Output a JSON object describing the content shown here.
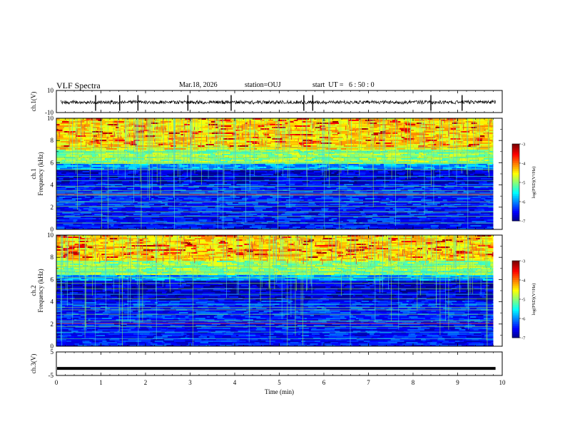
{
  "header": {
    "title": "VLF Spectra",
    "date": "Mar.18, 2026",
    "station": "station=OUJ",
    "start": "start  UT =   6 : 50 : 0"
  },
  "chart_data": [
    {
      "type": "line",
      "panel": "ch1",
      "ylabel": "ch.1(V)",
      "ylim": [
        -10,
        10
      ],
      "yticks": [
        "10",
        "-10"
      ],
      "xlim": [
        0,
        10
      ],
      "trace": "noisy waveform centred near 0 V with spikes",
      "spikes_min": [
        0.88,
        1.42,
        1.83,
        2.95,
        3.92,
        5.55,
        5.75,
        8.4,
        9.1
      ]
    },
    {
      "type": "heatmap",
      "panel": "ch1",
      "ylabel_line1": "ch.1",
      "ylabel_line2": "Frequency  (kHz)",
      "ylim": [
        0,
        10
      ],
      "yticks": [
        "0",
        "2",
        "4",
        "6",
        "8",
        "10"
      ],
      "xlim": [
        0,
        10
      ],
      "data_end_min": 9.8,
      "colorbar": {
        "label": "log(PSD)(V²/Hz)",
        "range": [
          -7,
          -3
        ],
        "ticks": [
          "-3",
          "-4",
          "-5",
          "-6",
          "-7"
        ]
      },
      "cutoff_khz": 6.0
    },
    {
      "type": "heatmap",
      "panel": "ch2",
      "ylabel_line1": "ch.2",
      "ylabel_line2": "Frequency  (kHz)",
      "ylim": [
        0,
        10
      ],
      "yticks": [
        "0",
        "2",
        "4",
        "6",
        "8",
        "10"
      ],
      "xlim": [
        0,
        10
      ],
      "data_end_min": 9.8,
      "colorbar": {
        "label": "log(PSD)(V²/Hz)",
        "range": [
          -7,
          -3
        ],
        "ticks": [
          "-3",
          "-4",
          "-5",
          "-6",
          "-7"
        ]
      },
      "cutoff_khz": 6.5
    },
    {
      "type": "line",
      "panel": "ch3",
      "ylabel": "ch.3(V)",
      "ylim": [
        -5,
        5
      ],
      "yticks": [
        "5",
        "-5"
      ],
      "xlim": [
        0,
        10
      ],
      "xlabel": "Time  (min)",
      "xticks": [
        "0",
        "1",
        "2",
        "3",
        "4",
        "5",
        "6",
        "7",
        "8",
        "9",
        "10"
      ],
      "level_v": -2
    }
  ]
}
